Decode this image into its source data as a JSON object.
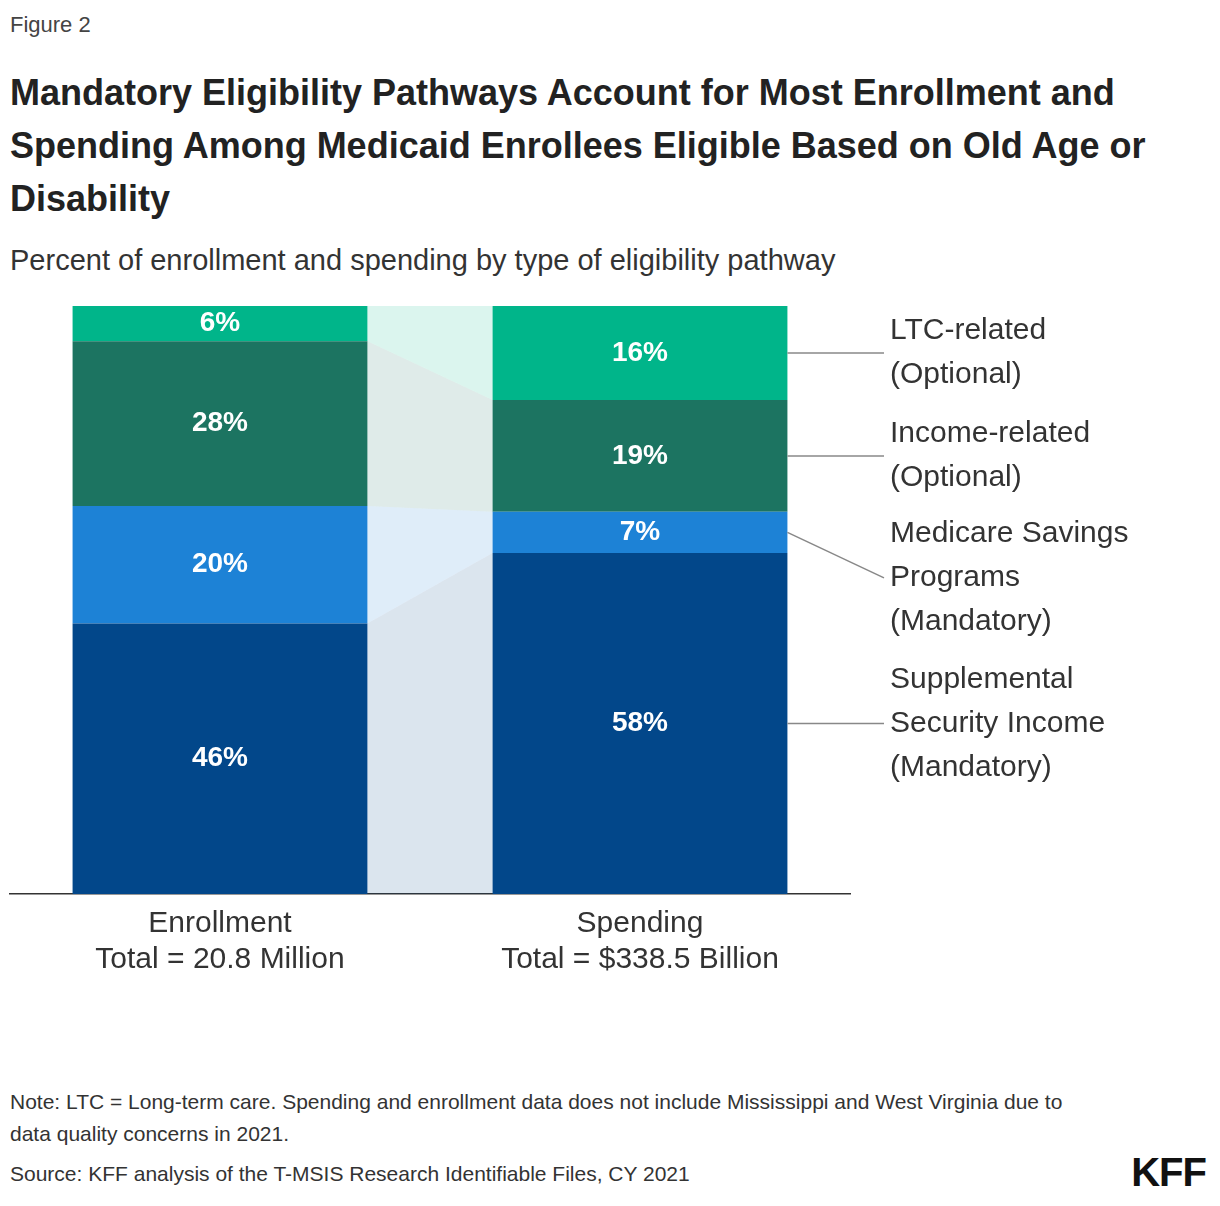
{
  "figure_label": "Figure 2",
  "title": "Mandatory Eligibility Pathways Account for Most Enrollment and Spending Among Medicaid Enrollees Eligible Based on Old Age or Disability",
  "subtitle": "Percent of enrollment and spending by type of eligibility pathway",
  "note": "Note: LTC = Long-term care. Spending and enrollment data does not include Mississippi and West Virginia due to data quality concerns in 2021.",
  "source": "Source: KFF analysis of the T-MSIS Research Identifiable Files, CY 2021",
  "logo": "KFF",
  "chart_data": {
    "type": "bar",
    "stacked": true,
    "categories": [
      [
        "Enrollment",
        "Total = 20.8 Million"
      ],
      [
        "Spending",
        "Total = $338.5 Billion"
      ]
    ],
    "series": [
      {
        "name": "Supplemental\nSecurity Income\n(Mandatory)",
        "color": "#02478a",
        "values": [
          46,
          58
        ],
        "value_labels": [
          "46%",
          "58%"
        ]
      },
      {
        "name": "Medicare Savings\nPrograms\n(Mandatory)",
        "color": "#1d82d6",
        "values": [
          20,
          7
        ],
        "value_labels": [
          "20%",
          "7%"
        ]
      },
      {
        "name": "Income-related\n(Optional)",
        "color": "#1c7461",
        "values": [
          28,
          19
        ],
        "value_labels": [
          "28%",
          "19%"
        ]
      },
      {
        "name": "LTC-related\n(Optional)",
        "color": "#00b58a",
        "values": [
          6,
          16
        ],
        "value_labels": [
          "6%",
          "16%"
        ]
      }
    ],
    "ylim": [
      0,
      100
    ],
    "tick_labels": "x",
    "grid": false,
    "data_labels": true
  }
}
